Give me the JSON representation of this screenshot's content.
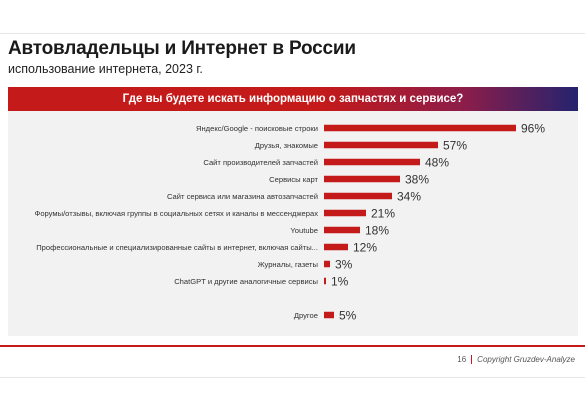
{
  "header": {
    "title": "Автовладельцы и Интернет в России",
    "subtitle": "использование интернета, 2023 г."
  },
  "chart_data": {
    "type": "bar",
    "orientation": "horizontal",
    "title": "Где вы будете искать информацию о запчастях и сервисе?",
    "categories": [
      "Яндекс/Google - поисковые строки",
      "Друзья, знакомые",
      "Сайт производителей запчастей",
      "Сервисы карт",
      "Сайт сервиса или магазина автозапчастей",
      "Форумы/отзывы, включая группы в социальных сетях и каналы в мессенджерах",
      "Youtube",
      "Профессиональные и специализированные сайты в интернет, включая сайты...",
      "Журналы, газеты",
      "ChatGPT и другие аналогичные сервисы",
      "Другое"
    ],
    "values": [
      96,
      57,
      48,
      38,
      34,
      21,
      18,
      12,
      3,
      1,
      5
    ],
    "value_labels": [
      "96%",
      "57%",
      "48%",
      "38%",
      "34%",
      "21%",
      "18%",
      "12%",
      "3%",
      "1%",
      "5%"
    ],
    "unit": "%",
    "xlim": [
      0,
      100
    ],
    "grid": false,
    "bar_color": "#c41a1a"
  },
  "footer": {
    "page_number": "16",
    "copyright": "Copyright Gruzdev-Analyze"
  },
  "colors": {
    "accent": "#c41a1a",
    "banner_end": "#24236e"
  }
}
